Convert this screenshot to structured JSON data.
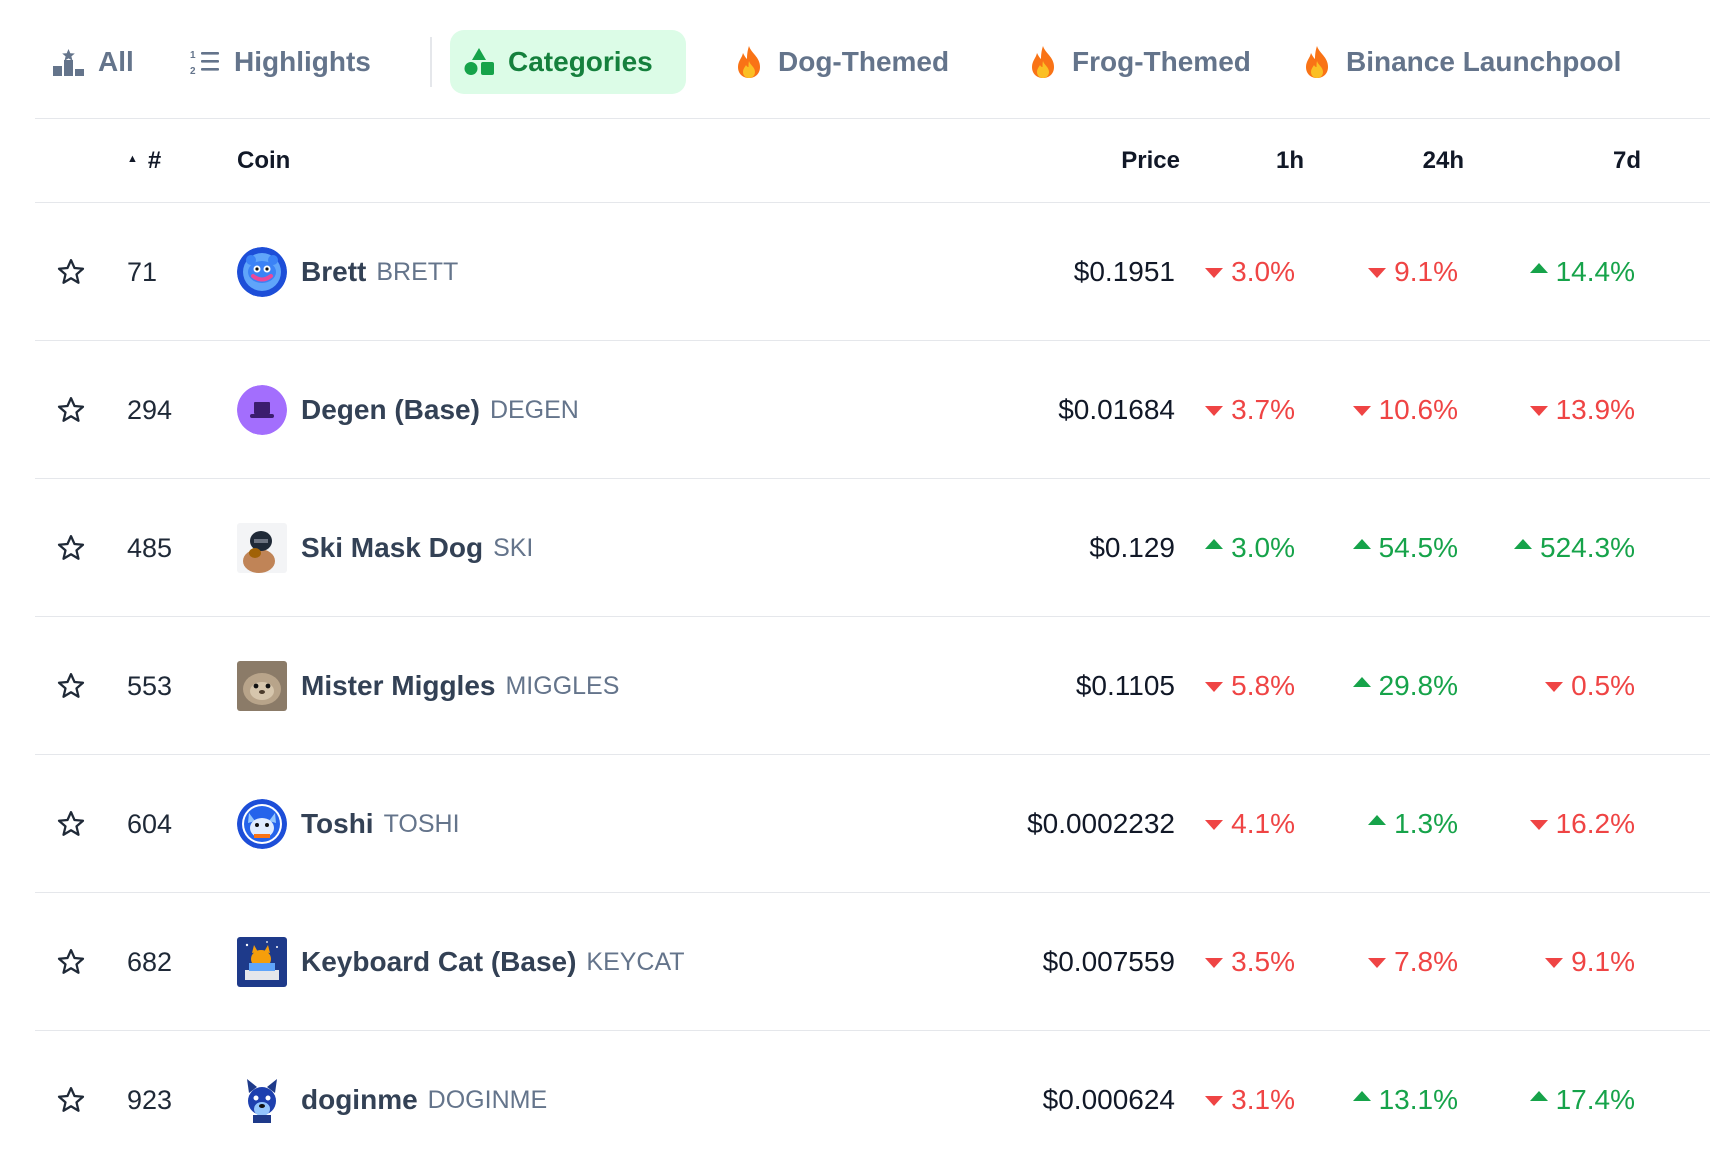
{
  "tabs": [
    {
      "label": "All",
      "icon": "podium-icon",
      "active": false
    },
    {
      "label": "Highlights",
      "icon": "numbered-list-icon",
      "active": false
    },
    {
      "label": "Categories",
      "icon": "shapes-icon",
      "active": true
    },
    {
      "label": "Dog-Themed",
      "icon": "fire-icon",
      "active": false
    },
    {
      "label": "Frog-Themed",
      "icon": "fire-icon",
      "active": false
    },
    {
      "label": "Binance Launchpool",
      "icon": "fire-icon",
      "active": false
    }
  ],
  "table": {
    "headers": {
      "rank": "#",
      "coin": "Coin",
      "price": "Price",
      "h1": "1h",
      "h24": "24h",
      "d7": "7d"
    },
    "rows": [
      {
        "rank": "71",
        "name": "Brett",
        "symbol": "BRETT",
        "price": "$0.1951",
        "h1": "3.0%",
        "h1_dir": "down",
        "h24": "9.1%",
        "h24_dir": "down",
        "d7": "14.4%",
        "d7_dir": "up"
      },
      {
        "rank": "294",
        "name": "Degen (Base)",
        "symbol": "DEGEN",
        "price": "$0.01684",
        "h1": "3.7%",
        "h1_dir": "down",
        "h24": "10.6%",
        "h24_dir": "down",
        "d7": "13.9%",
        "d7_dir": "down"
      },
      {
        "rank": "485",
        "name": "Ski Mask Dog",
        "symbol": "SKI",
        "price": "$0.129",
        "h1": "3.0%",
        "h1_dir": "up",
        "h24": "54.5%",
        "h24_dir": "up",
        "d7": "524.3%",
        "d7_dir": "up"
      },
      {
        "rank": "553",
        "name": "Mister Miggles",
        "symbol": "MIGGLES",
        "price": "$0.1105",
        "h1": "5.8%",
        "h1_dir": "down",
        "h24": "29.8%",
        "h24_dir": "up",
        "d7": "0.5%",
        "d7_dir": "down"
      },
      {
        "rank": "604",
        "name": "Toshi",
        "symbol": "TOSHI",
        "price": "$0.0002232",
        "h1": "4.1%",
        "h1_dir": "down",
        "h24": "1.3%",
        "h24_dir": "up",
        "d7": "16.2%",
        "d7_dir": "down"
      },
      {
        "rank": "682",
        "name": "Keyboard Cat (Base)",
        "symbol": "KEYCAT",
        "price": "$0.007559",
        "h1": "3.5%",
        "h1_dir": "down",
        "h24": "7.8%",
        "h24_dir": "down",
        "d7": "9.1%",
        "d7_dir": "down"
      },
      {
        "rank": "923",
        "name": "doginme",
        "symbol": "DOGINME",
        "price": "$0.000624",
        "h1": "3.1%",
        "h1_dir": "down",
        "h24": "13.1%",
        "h24_dir": "up",
        "d7": "17.4%",
        "d7_dir": "up"
      }
    ]
  },
  "colors": {
    "up": "#16a34a",
    "down": "#ef4444",
    "active_tab_bg": "#dcfce7",
    "active_tab_text": "#15803d"
  }
}
